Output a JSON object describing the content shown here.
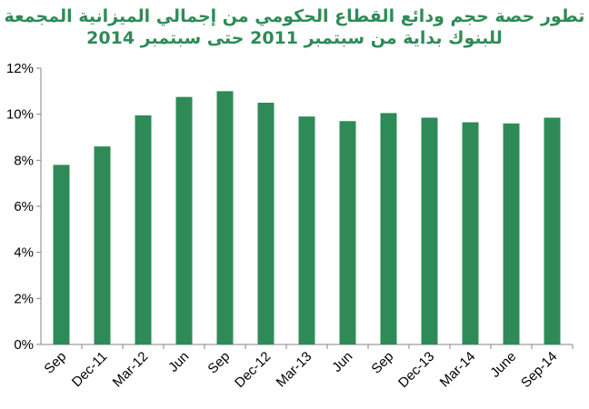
{
  "chart_data": {
    "type": "bar",
    "title_line1": "تطور حصة حجم  ودائع القطاع الحكومي من إجمالي الميزانية المجمعة",
    "title_line2": "للبنوك بداية من سبتمبر 2011 حتى سبتمبر 2014",
    "categories": [
      "Sep",
      "Dec-11",
      "Mar-12",
      "Jun",
      "Sep",
      "Dec-12",
      "Mar-13",
      "Jun",
      "Sep",
      "Dec-13",
      "Mar-14",
      "June",
      "Sep-14"
    ],
    "values": [
      7.8,
      8.6,
      9.95,
      10.75,
      11.0,
      10.5,
      9.9,
      9.7,
      10.05,
      9.85,
      9.65,
      9.6,
      9.85
    ],
    "y_ticks": [
      "0%",
      "2%",
      "4%",
      "6%",
      "8%",
      "10%",
      "12%"
    ],
    "ylim": [
      0,
      12
    ],
    "xlabel": "",
    "ylabel": "",
    "grid": false,
    "bar_color": "#2E8B57",
    "title_color": "#2E8B57"
  }
}
